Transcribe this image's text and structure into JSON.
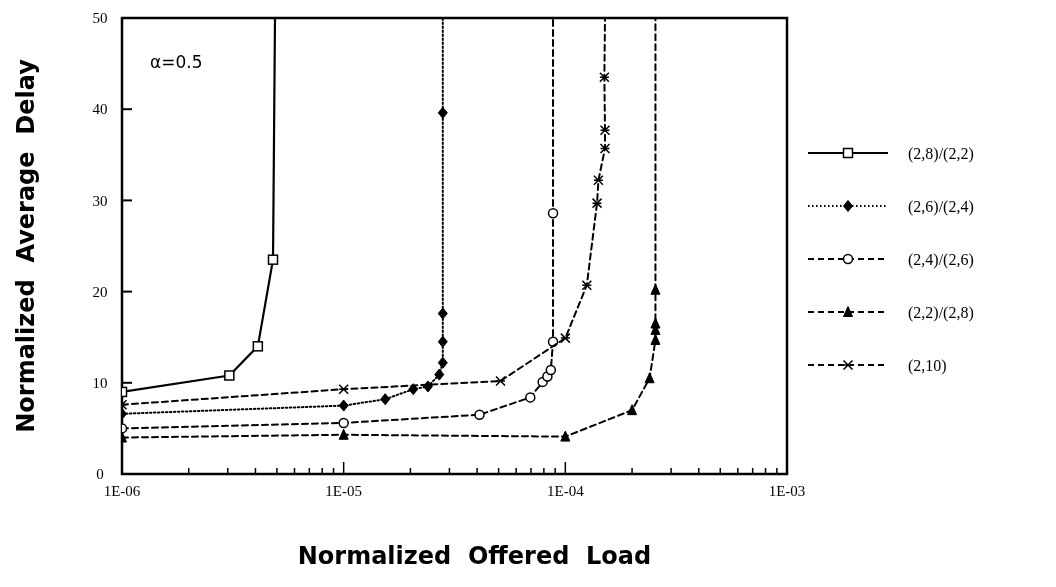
{
  "chart_data": {
    "type": "line",
    "xlabel": "Normalized  Offered  Load",
    "ylabel": "Normalized  Average  Delay",
    "log": "x",
    "grid": false,
    "legend": "right",
    "annotations": [
      "α=0.5"
    ],
    "xlim": [
      1e-06,
      0.001
    ],
    "ylim": [
      0,
      50
    ],
    "yticks": [
      0,
      10,
      20,
      30,
      40,
      50
    ],
    "xticks": [
      {
        "value": 1e-06,
        "label": "1E-06"
      },
      {
        "value": 2e-06,
        "label": null
      },
      {
        "value": 3e-06,
        "label": null
      },
      {
        "value": 4e-06,
        "label": null
      },
      {
        "value": 5e-06,
        "label": null
      },
      {
        "value": 6e-06,
        "label": null
      },
      {
        "value": 7e-06,
        "label": null
      },
      {
        "value": 8e-06,
        "label": null
      },
      {
        "value": 9e-06,
        "label": null
      },
      {
        "value": 1e-05,
        "label": "1E-05"
      },
      {
        "value": 2e-05,
        "label": null
      },
      {
        "value": 3e-05,
        "label": null
      },
      {
        "value": 4e-05,
        "label": null
      },
      {
        "value": 5e-05,
        "label": null
      },
      {
        "value": 6e-05,
        "label": null
      },
      {
        "value": 7e-05,
        "label": null
      },
      {
        "value": 8e-05,
        "label": null
      },
      {
        "value": 9e-05,
        "label": null
      },
      {
        "value": 0.0001,
        "label": "1E-04"
      },
      {
        "value": 0.0002,
        "label": null
      },
      {
        "value": 0.0003,
        "label": null
      },
      {
        "value": 0.0004,
        "label": null
      },
      {
        "value": 0.0005,
        "label": null
      },
      {
        "value": 0.0006,
        "label": null
      },
      {
        "value": 0.0007,
        "label": null
      },
      {
        "value": 0.0008,
        "label": null
      },
      {
        "value": 0.0009,
        "label": null
      },
      {
        "value": 0.001,
        "label": "1E-03"
      }
    ],
    "series": [
      {
        "name": "(2,8)/(2,2)",
        "color": "#000000",
        "marker": "square",
        "line_style": "solid",
        "x": [
          1e-06,
          3.05e-06,
          4.1e-06,
          4.8e-06,
          4.9e-06
        ],
        "values": [
          9.0,
          10.8,
          14.0,
          23.5,
          50
        ]
      },
      {
        "name": "(2,6)/(2,4)",
        "color": "#000000",
        "marker": "diamond",
        "line_style": "dotted",
        "x": [
          1e-06,
          1e-05,
          1.54e-05,
          2.06e-05,
          2.4e-05,
          2.7e-05,
          2.8e-05,
          2.8e-05,
          2.8e-05,
          2.8e-05,
          2.8e-05
        ],
        "values": [
          6.6,
          7.5,
          8.2,
          9.3,
          9.6,
          10.9,
          12.2,
          14.5,
          17.6,
          39.6,
          50
        ]
      },
      {
        "name": "(2,4)/(2,6)",
        "color": "#000000",
        "marker": "circle",
        "line_style": "dashed",
        "x": [
          1e-06,
          1e-05,
          4.1e-05,
          6.95e-05,
          7.9e-05,
          8.3e-05,
          8.6e-05,
          8.8e-05,
          8.8e-05,
          8.8e-05
        ],
        "values": [
          5.0,
          5.6,
          6.5,
          8.4,
          10.1,
          10.7,
          11.4,
          14.5,
          28.6,
          50
        ]
      },
      {
        "name": "(2,2)/(2,8)",
        "color": "#000000",
        "marker": "triangle",
        "line_style": "dashed",
        "x": [
          1e-06,
          1e-05,
          0.0001,
          0.0002,
          0.00024,
          0.000255,
          0.000255,
          0.000255,
          0.000255,
          0.000255
        ],
        "values": [
          4.0,
          4.3,
          4.1,
          7.0,
          10.5,
          14.7,
          15.8,
          16.5,
          20.2,
          50
        ]
      },
      {
        "name": "(2,10)",
        "color": "#000000",
        "marker": "cross",
        "line_style": "dashed",
        "x": [
          1e-06,
          1e-05,
          5.1e-05,
          0.0001,
          0.000125,
          0.000139,
          0.000141,
          0.000151,
          0.000151,
          0.00015,
          0.000151
        ],
        "values": [
          7.6,
          9.3,
          10.2,
          14.9,
          20.7,
          29.7,
          32.2,
          35.7,
          37.7,
          43.5,
          50
        ]
      }
    ]
  }
}
